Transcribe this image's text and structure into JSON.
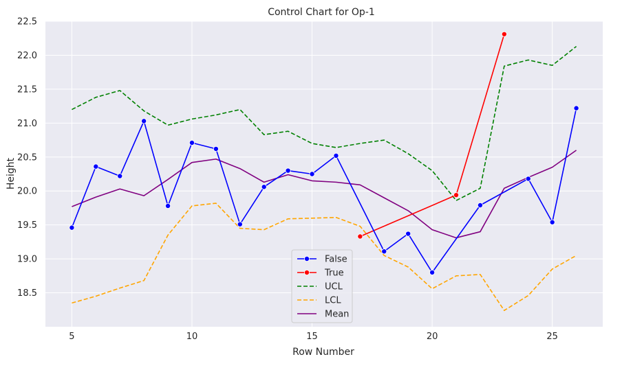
{
  "chart_data": {
    "type": "line",
    "title": "Control Chart for Op-1",
    "xlabel": "Row Number",
    "ylabel": "Height",
    "xlim": [
      3.9,
      27.1
    ],
    "ylim": [
      18.0,
      22.5
    ],
    "xticks": [
      5,
      10,
      15,
      20,
      25
    ],
    "yticks": [
      18.5,
      19.0,
      19.5,
      20.0,
      20.5,
      21.0,
      21.5,
      22.0,
      22.5
    ],
    "xtick_labels": [
      "5",
      "10",
      "15",
      "20",
      "25"
    ],
    "ytick_labels": [
      "18.5",
      "19.0",
      "19.5",
      "20.0",
      "20.5",
      "21.0",
      "21.5",
      "22.0",
      "22.5"
    ],
    "grid": true,
    "background": "#eaeaf2",
    "legend_position": "lower-center",
    "series": [
      {
        "name": "False",
        "color": "#0000ff",
        "style": "solid",
        "marker": true,
        "x": [
          5,
          6,
          7,
          8,
          9,
          10,
          11,
          12,
          13,
          14,
          15,
          16,
          18,
          19,
          20,
          22,
          24,
          25,
          26
        ],
        "y": [
          19.46,
          20.36,
          20.22,
          21.03,
          19.78,
          20.71,
          20.62,
          19.51,
          20.06,
          20.3,
          20.25,
          20.52,
          19.11,
          19.37,
          18.8,
          19.79,
          20.18,
          19.54,
          21.22
        ]
      },
      {
        "name": "True",
        "color": "#ff0000",
        "style": "solid",
        "marker": true,
        "x": [
          17,
          21,
          23
        ],
        "y": [
          19.33,
          19.94,
          22.31
        ]
      },
      {
        "name": "UCL",
        "color": "#008000",
        "style": "dashed",
        "marker": false,
        "x": [
          5,
          6,
          7,
          8,
          9,
          10,
          11,
          12,
          13,
          14,
          15,
          16,
          17,
          18,
          19,
          20,
          21,
          22,
          23,
          24,
          25,
          26
        ],
        "y": [
          21.2,
          21.38,
          21.48,
          21.18,
          20.97,
          21.06,
          21.12,
          21.2,
          20.83,
          20.88,
          20.7,
          20.64,
          20.7,
          20.75,
          20.55,
          20.3,
          19.86,
          20.04,
          21.84,
          21.93,
          21.85,
          22.13
        ]
      },
      {
        "name": "LCL",
        "color": "#ffa500",
        "style": "dashed",
        "marker": false,
        "x": [
          5,
          6,
          7,
          8,
          9,
          10,
          11,
          12,
          13,
          14,
          15,
          16,
          17,
          18,
          19,
          20,
          21,
          22,
          23,
          24,
          25,
          26
        ],
        "y": [
          18.35,
          18.45,
          18.57,
          18.68,
          19.35,
          19.78,
          19.82,
          19.45,
          19.43,
          19.59,
          19.6,
          19.61,
          19.48,
          19.05,
          18.88,
          18.56,
          18.75,
          18.77,
          18.24,
          18.46,
          18.85,
          19.05
        ]
      },
      {
        "name": "Mean",
        "color": "#800080",
        "style": "solid",
        "marker": false,
        "x": [
          5,
          6,
          7,
          8,
          9,
          10,
          11,
          12,
          13,
          14,
          15,
          16,
          17,
          18,
          19,
          20,
          21,
          22,
          23,
          24,
          25,
          26
        ],
        "y": [
          19.77,
          19.91,
          20.03,
          19.93,
          20.17,
          20.42,
          20.47,
          20.33,
          20.13,
          20.24,
          20.15,
          20.13,
          20.09,
          19.9,
          19.71,
          19.43,
          19.31,
          19.4,
          20.04,
          20.2,
          20.35,
          20.6
        ]
      }
    ]
  }
}
